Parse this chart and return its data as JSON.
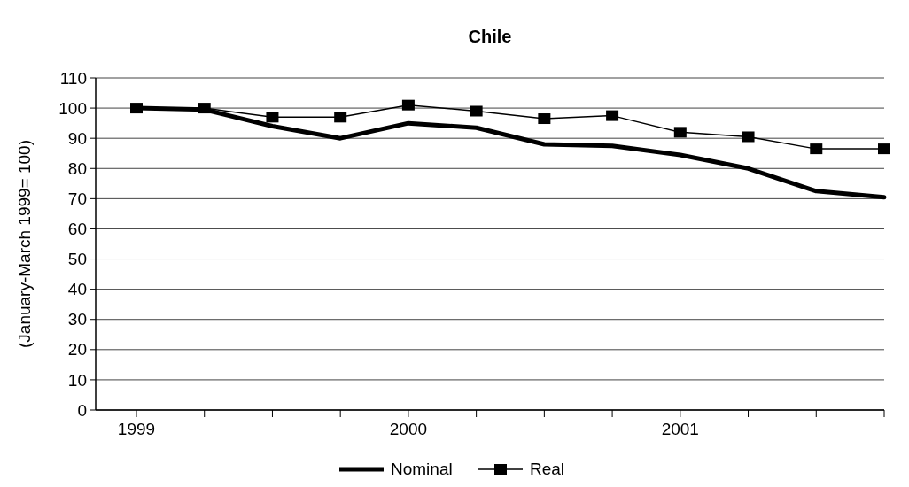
{
  "chart_data": {
    "type": "line",
    "title": "Chile",
    "ylabel": "(January-March 1999= 100)",
    "categories": [
      "1999",
      null,
      null,
      null,
      "2000",
      null,
      null,
      null,
      "2001",
      null,
      null,
      null
    ],
    "series": [
      {
        "name": "Nominal",
        "color": "#000000",
        "marker": "none",
        "values": [
          100,
          99.5,
          94,
          90,
          95,
          93.5,
          88,
          87.5,
          84.5,
          80,
          72.5,
          70.5
        ]
      },
      {
        "name": "Real",
        "color": "#000000",
        "marker": "square",
        "values": [
          100,
          100,
          97,
          97,
          101,
          99,
          96.5,
          97.5,
          92,
          90.5,
          86.5,
          86.5
        ]
      }
    ],
    "ylim": [
      0,
      110
    ],
    "yticks": [
      0,
      10,
      20,
      30,
      40,
      50,
      60,
      70,
      80,
      90,
      100,
      110
    ],
    "grid": "y",
    "legend": "bottom"
  }
}
